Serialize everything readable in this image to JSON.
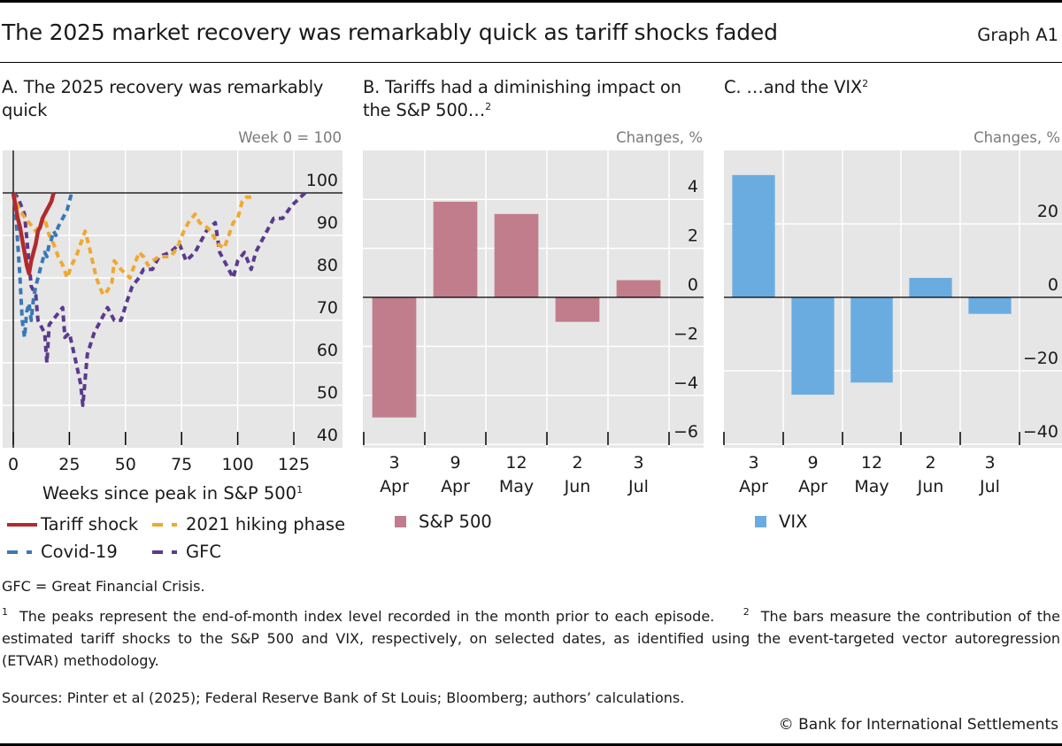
{
  "header": {
    "title": "The 2025 market recovery was remarkably quick as tariff shocks faded",
    "graph_id": "Graph A1"
  },
  "panels": {
    "a": {
      "title": "A. The 2025 recovery was remarkably quick",
      "unit": "Week 0 = 100",
      "xlabel": "Weeks since peak in S&P 500",
      "xlabel_sup": "1"
    },
    "b": {
      "title": "B. Tariffs had a diminishing impact on the S&P 500…",
      "title_sup": "2",
      "unit": "Changes, %"
    },
    "c": {
      "title": "C. …and the VIX",
      "title_sup": "2",
      "unit": "Changes, %"
    }
  },
  "colors": {
    "tariff": "#B22A2E",
    "covid": "#3A78B8",
    "hiking": "#F0A830",
    "gfc": "#5B3A8E",
    "sp500_bar": "#C17D8C",
    "vix_bar": "#6AACE0",
    "plot_bg": "#E6E6E6"
  },
  "chart_data": [
    {
      "id": "a",
      "type": "line",
      "title": "A. The 2025 recovery was remarkably quick",
      "xlabel": "Weeks since peak in S&P 500",
      "ylabel": "Week 0 = 100",
      "xlim": [
        -5,
        146
      ],
      "ylim": [
        40,
        110
      ],
      "xticks": [
        0,
        25,
        50,
        75,
        100,
        125
      ],
      "yticks": [
        40,
        50,
        60,
        70,
        80,
        90,
        100
      ],
      "grid": true,
      "legend_position": "bottom",
      "series": [
        {
          "name": "Tariff shock",
          "style": "solid",
          "color_key": "tariff",
          "x": [
            0,
            1,
            2,
            3,
            4,
            5,
            6,
            7,
            8,
            9,
            10,
            11,
            12,
            13,
            14,
            15,
            16,
            17,
            18
          ],
          "y": [
            100,
            97,
            94,
            92,
            89,
            86,
            83,
            81,
            84,
            86,
            88,
            91,
            92,
            94,
            95,
            96,
            97,
            98,
            100
          ]
        },
        {
          "name": "2021 hiking phase",
          "style": "dashed",
          "color_key": "hiking",
          "x": [
            0,
            2,
            4,
            7,
            10,
            14,
            16,
            18,
            20,
            22,
            24,
            26,
            28,
            30,
            32,
            34,
            37,
            40,
            42,
            44,
            45,
            48,
            50,
            52,
            54,
            56,
            58,
            60,
            62,
            65,
            68,
            70,
            73,
            76,
            78,
            81,
            83,
            86,
            88,
            91,
            94,
            96,
            98,
            100,
            102,
            104,
            106
          ],
          "y": [
            100,
            97,
            95,
            93,
            91,
            94,
            90,
            88,
            85,
            83,
            80,
            83,
            85,
            88,
            91,
            87,
            80,
            76,
            77,
            79,
            84,
            82,
            81,
            80,
            83,
            86,
            85,
            83,
            84,
            85,
            85,
            85,
            87,
            91,
            93,
            95,
            93,
            92,
            91,
            88,
            87,
            90,
            93,
            94,
            98,
            99,
            99
          ]
        },
        {
          "name": "Covid-19",
          "style": "dashed",
          "color_key": "covid",
          "x": [
            0,
            1,
            2,
            3,
            4,
            5,
            6,
            7,
            8,
            9,
            10,
            11,
            12,
            13,
            14,
            15,
            16,
            17,
            18,
            19,
            20,
            21,
            22,
            23,
            24,
            25,
            26
          ],
          "y": [
            100,
            96,
            88,
            80,
            70,
            66,
            72,
            74,
            70,
            75,
            78,
            80,
            82,
            84,
            86,
            85,
            88,
            89,
            91,
            90,
            92,
            93,
            94,
            95,
            96,
            98,
            100
          ]
        },
        {
          "name": "GFC",
          "style": "dashed",
          "color_key": "gfc",
          "x": [
            0,
            2,
            5,
            8,
            10,
            11,
            14,
            15,
            16,
            19,
            22,
            23,
            25,
            28,
            30,
            31,
            33,
            36,
            39,
            42,
            45,
            48,
            51,
            53,
            56,
            58,
            62,
            65,
            70,
            74,
            77,
            81,
            86,
            90,
            92,
            95,
            98,
            100,
            103,
            106,
            108,
            112,
            116,
            120,
            124,
            128,
            130
          ],
          "y": [
            100,
            99,
            95,
            78,
            76,
            70,
            67,
            60,
            69,
            71,
            73,
            66,
            67,
            60,
            55,
            50,
            62,
            67,
            70,
            73,
            70,
            70,
            75,
            78,
            80,
            82,
            82,
            85,
            86,
            88,
            84,
            86,
            91,
            93,
            86,
            83,
            80,
            84,
            86,
            82,
            86,
            90,
            94,
            94,
            97,
            99,
            100
          ]
        }
      ]
    },
    {
      "id": "b",
      "type": "bar",
      "title": "B. Tariffs had a diminishing impact on the S&P 500…",
      "ylabel": "Changes, %",
      "categories": [
        [
          "3",
          "Apr"
        ],
        [
          "9",
          "Apr"
        ],
        [
          "12",
          "May"
        ],
        [
          "2",
          "Jun"
        ],
        [
          "3",
          "Jul"
        ]
      ],
      "series": [
        {
          "name": "S&P 500",
          "color_key": "sp500_bar",
          "values": [
            -4.9,
            3.9,
            3.4,
            -1.0,
            0.7
          ]
        }
      ],
      "ylim": [
        -6,
        6
      ],
      "yticks": [
        -6,
        -4,
        -2,
        0,
        2,
        4
      ],
      "ytick_labels": [
        "−6",
        "−4",
        "−2",
        "0",
        "2",
        "4"
      ],
      "grid": true,
      "legend_position": "bottom-left"
    },
    {
      "id": "c",
      "type": "bar",
      "title": "C. …and the VIX",
      "ylabel": "Changes, %",
      "categories": [
        [
          "3",
          "Apr"
        ],
        [
          "9",
          "Apr"
        ],
        [
          "12",
          "May"
        ],
        [
          "2",
          "Jun"
        ],
        [
          "3",
          "Jul"
        ]
      ],
      "series": [
        {
          "name": "VIX",
          "color_key": "vix_bar",
          "values": [
            33.3,
            -26.5,
            -23.2,
            5.3,
            -4.5
          ]
        }
      ],
      "ylim": [
        -40,
        40
      ],
      "yticks": [
        -40,
        -20,
        0,
        20
      ],
      "ytick_labels": [
        "−40",
        "−20",
        "0",
        "20"
      ],
      "grid": true,
      "legend_position": "bottom-left"
    }
  ],
  "legend_a": [
    {
      "label": "Tariff shock",
      "color_key": "tariff",
      "style": "solid"
    },
    {
      "label": "2021 hiking phase",
      "color_key": "hiking",
      "style": "dashed"
    },
    {
      "label": "Covid-19",
      "color_key": "covid",
      "style": "dashed"
    },
    {
      "label": "GFC",
      "color_key": "gfc",
      "style": "dashed"
    }
  ],
  "legend_b": {
    "label": "S&P 500"
  },
  "legend_c": {
    "label": "VIX"
  },
  "notes": {
    "abbrev": "GFC = Great Financial Crisis.",
    "fn1_num": "1",
    "fn1": "The peaks represent the end-of-month index level recorded in the month prior to each episode.",
    "fn2_num": "2",
    "fn2": "The bars measure the contribution of the estimated tariff shocks to the S&P 500 and VIX, respectively, on selected dates, as identified using the event-targeted vector autoregression (ETVAR) methodology.",
    "sources": "Sources: Pinter et al (2025); Federal Reserve Bank of St Louis; Bloomberg; authors’ calculations.",
    "copyright": "© Bank for International Settlements"
  }
}
